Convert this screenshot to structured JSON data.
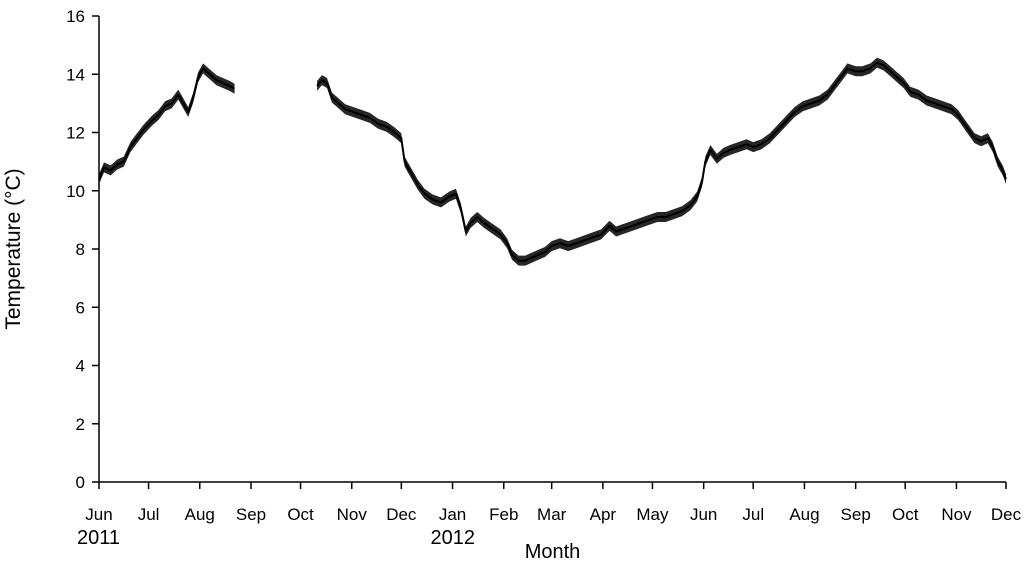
{
  "chart_data": {
    "type": "line",
    "title": "",
    "xlabel": "Month",
    "ylabel": "Temperature (°C)",
    "ylim": [
      0,
      16
    ],
    "yticks": [
      0,
      2,
      4,
      6,
      8,
      10,
      12,
      14,
      16
    ],
    "xlim": [
      "2011-06-01",
      "2012-12-01"
    ],
    "xticks": [
      {
        "label": "Jun",
        "date": "2011-06-01"
      },
      {
        "label": "Jul",
        "date": "2011-07-01"
      },
      {
        "label": "Aug",
        "date": "2011-08-01"
      },
      {
        "label": "Sep",
        "date": "2011-09-01"
      },
      {
        "label": "Oct",
        "date": "2011-10-01"
      },
      {
        "label": "Nov",
        "date": "2011-11-01"
      },
      {
        "label": "Dec",
        "date": "2011-12-01"
      },
      {
        "label": "Jan",
        "date": "2012-01-01"
      },
      {
        "label": "Feb",
        "date": "2012-02-01"
      },
      {
        "label": "Mar",
        "date": "2012-03-01"
      },
      {
        "label": "Apr",
        "date": "2012-04-01"
      },
      {
        "label": "May",
        "date": "2012-05-01"
      },
      {
        "label": "Jun",
        "date": "2012-06-01"
      },
      {
        "label": "Jul",
        "date": "2012-07-01"
      },
      {
        "label": "Aug",
        "date": "2012-08-01"
      },
      {
        "label": "Sep",
        "date": "2012-09-01"
      },
      {
        "label": "Oct",
        "date": "2012-10-01"
      },
      {
        "label": "Nov",
        "date": "2012-11-01"
      },
      {
        "label": "Dec",
        "date": "2012-12-01"
      }
    ],
    "year_labels": [
      {
        "label": "2011",
        "date": "2011-06-01"
      },
      {
        "label": "2012",
        "date": "2012-01-01"
      }
    ],
    "grid": false,
    "line_color": "#000000",
    "series": [
      {
        "segments": [
          [
            [
              "2011-06-01",
              10.4
            ],
            [
              "2011-06-04",
              10.8
            ],
            [
              "2011-06-08",
              10.7
            ],
            [
              "2011-06-12",
              10.9
            ],
            [
              "2011-06-16",
              11.0
            ],
            [
              "2011-06-20",
              11.5
            ],
            [
              "2011-06-24",
              11.8
            ],
            [
              "2011-06-28",
              12.1
            ],
            [
              "2011-07-03",
              12.4
            ],
            [
              "2011-07-07",
              12.6
            ],
            [
              "2011-07-11",
              12.9
            ],
            [
              "2011-07-15",
              13.0
            ],
            [
              "2011-07-19",
              13.3
            ],
            [
              "2011-07-22",
              13.0
            ],
            [
              "2011-07-25",
              12.7
            ],
            [
              "2011-07-28",
              13.2
            ],
            [
              "2011-07-31",
              13.9
            ],
            [
              "2011-08-03",
              14.2
            ],
            [
              "2011-08-07",
              14.0
            ],
            [
              "2011-08-11",
              13.8
            ],
            [
              "2011-08-15",
              13.7
            ],
            [
              "2011-08-19",
              13.6
            ],
            [
              "2011-08-22",
              13.5
            ]
          ],
          [
            [
              "2011-10-11",
              13.6
            ],
            [
              "2011-10-14",
              13.8
            ],
            [
              "2011-10-17",
              13.7
            ],
            [
              "2011-10-20",
              13.2
            ],
            [
              "2011-10-24",
              13.0
            ],
            [
              "2011-10-28",
              12.8
            ],
            [
              "2011-11-02",
              12.7
            ],
            [
              "2011-11-07",
              12.6
            ],
            [
              "2011-11-12",
              12.5
            ],
            [
              "2011-11-17",
              12.3
            ],
            [
              "2011-11-22",
              12.2
            ],
            [
              "2011-11-27",
              12.0
            ],
            [
              "2011-12-01",
              11.8
            ],
            [
              "2011-12-03",
              11.0
            ],
            [
              "2011-12-07",
              10.6
            ],
            [
              "2011-12-11",
              10.2
            ],
            [
              "2011-12-15",
              9.9
            ],
            [
              "2011-12-20",
              9.7
            ],
            [
              "2011-12-25",
              9.6
            ],
            [
              "2011-12-30",
              9.8
            ],
            [
              "2012-01-03",
              9.9
            ],
            [
              "2012-01-06",
              9.4
            ],
            [
              "2012-01-09",
              8.6
            ],
            [
              "2012-01-12",
              8.9
            ],
            [
              "2012-01-16",
              9.1
            ],
            [
              "2012-01-20",
              8.9
            ],
            [
              "2012-01-25",
              8.7
            ],
            [
              "2012-01-30",
              8.5
            ],
            [
              "2012-02-03",
              8.2
            ],
            [
              "2012-02-06",
              7.8
            ],
            [
              "2012-02-10",
              7.6
            ],
            [
              "2012-02-14",
              7.6
            ],
            [
              "2012-02-18",
              7.7
            ],
            [
              "2012-02-22",
              7.8
            ],
            [
              "2012-02-26",
              7.9
            ],
            [
              "2012-03-01",
              8.1
            ],
            [
              "2012-03-06",
              8.2
            ],
            [
              "2012-03-11",
              8.1
            ],
            [
              "2012-03-16",
              8.2
            ],
            [
              "2012-03-21",
              8.3
            ],
            [
              "2012-03-26",
              8.4
            ],
            [
              "2012-03-31",
              8.5
            ],
            [
              "2012-04-05",
              8.8
            ],
            [
              "2012-04-09",
              8.6
            ],
            [
              "2012-04-14",
              8.7
            ],
            [
              "2012-04-19",
              8.8
            ],
            [
              "2012-04-24",
              8.9
            ],
            [
              "2012-04-29",
              9.0
            ],
            [
              "2012-05-04",
              9.1
            ],
            [
              "2012-05-09",
              9.1
            ],
            [
              "2012-05-14",
              9.2
            ],
            [
              "2012-05-19",
              9.3
            ],
            [
              "2012-05-24",
              9.5
            ],
            [
              "2012-05-28",
              9.8
            ],
            [
              "2012-05-31",
              10.3
            ],
            [
              "2012-06-02",
              11.0
            ],
            [
              "2012-06-05",
              11.4
            ],
            [
              "2012-06-09",
              11.1
            ],
            [
              "2012-06-13",
              11.3
            ],
            [
              "2012-06-17",
              11.4
            ],
            [
              "2012-06-22",
              11.5
            ],
            [
              "2012-06-27",
              11.6
            ],
            [
              "2012-07-01",
              11.5
            ],
            [
              "2012-07-06",
              11.6
            ],
            [
              "2012-07-11",
              11.8
            ],
            [
              "2012-07-16",
              12.1
            ],
            [
              "2012-07-21",
              12.4
            ],
            [
              "2012-07-26",
              12.7
            ],
            [
              "2012-07-31",
              12.9
            ],
            [
              "2012-08-05",
              13.0
            ],
            [
              "2012-08-10",
              13.1
            ],
            [
              "2012-08-15",
              13.3
            ],
            [
              "2012-08-19",
              13.6
            ],
            [
              "2012-08-23",
              13.9
            ],
            [
              "2012-08-27",
              14.2
            ],
            [
              "2012-09-01",
              14.1
            ],
            [
              "2012-09-05",
              14.1
            ],
            [
              "2012-09-10",
              14.2
            ],
            [
              "2012-09-14",
              14.4
            ],
            [
              "2012-09-18",
              14.3
            ],
            [
              "2012-09-22",
              14.1
            ],
            [
              "2012-09-26",
              13.9
            ],
            [
              "2012-09-30",
              13.7
            ],
            [
              "2012-10-04",
              13.4
            ],
            [
              "2012-10-09",
              13.3
            ],
            [
              "2012-10-14",
              13.1
            ],
            [
              "2012-10-19",
              13.0
            ],
            [
              "2012-10-24",
              12.9
            ],
            [
              "2012-10-29",
              12.8
            ],
            [
              "2012-11-02",
              12.6
            ],
            [
              "2012-11-07",
              12.2
            ],
            [
              "2012-11-12",
              11.8
            ],
            [
              "2012-11-16",
              11.7
            ],
            [
              "2012-11-20",
              11.8
            ],
            [
              "2012-11-23",
              11.5
            ],
            [
              "2012-11-26",
              11.0
            ],
            [
              "2012-11-29",
              10.7
            ],
            [
              "2012-12-01",
              10.4
            ]
          ]
        ]
      }
    ]
  }
}
